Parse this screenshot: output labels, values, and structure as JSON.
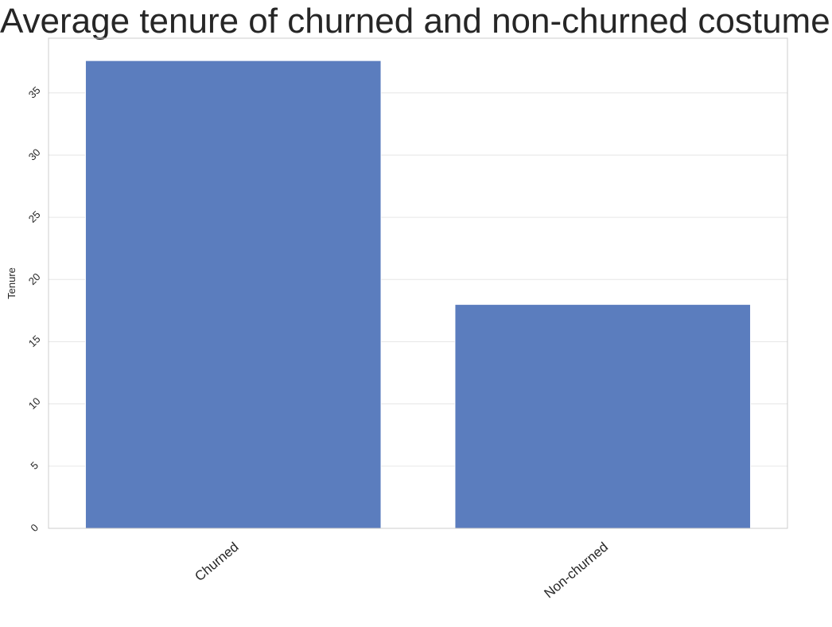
{
  "chart_data": {
    "type": "bar",
    "title": "Average tenure of churned and non-churned costumers",
    "xlabel": "",
    "ylabel": "Tenure",
    "categories": [
      "Churned",
      "Non-churned"
    ],
    "values": [
      37.6,
      18.0
    ],
    "ylim": [
      0,
      39.4
    ],
    "yticks": [
      0,
      5,
      10,
      15,
      20,
      25,
      30,
      35
    ],
    "grid": true,
    "bar_color": "#5b7dbe",
    "grid_color": "#e6e6e6",
    "spine_color": "#cccccc"
  }
}
